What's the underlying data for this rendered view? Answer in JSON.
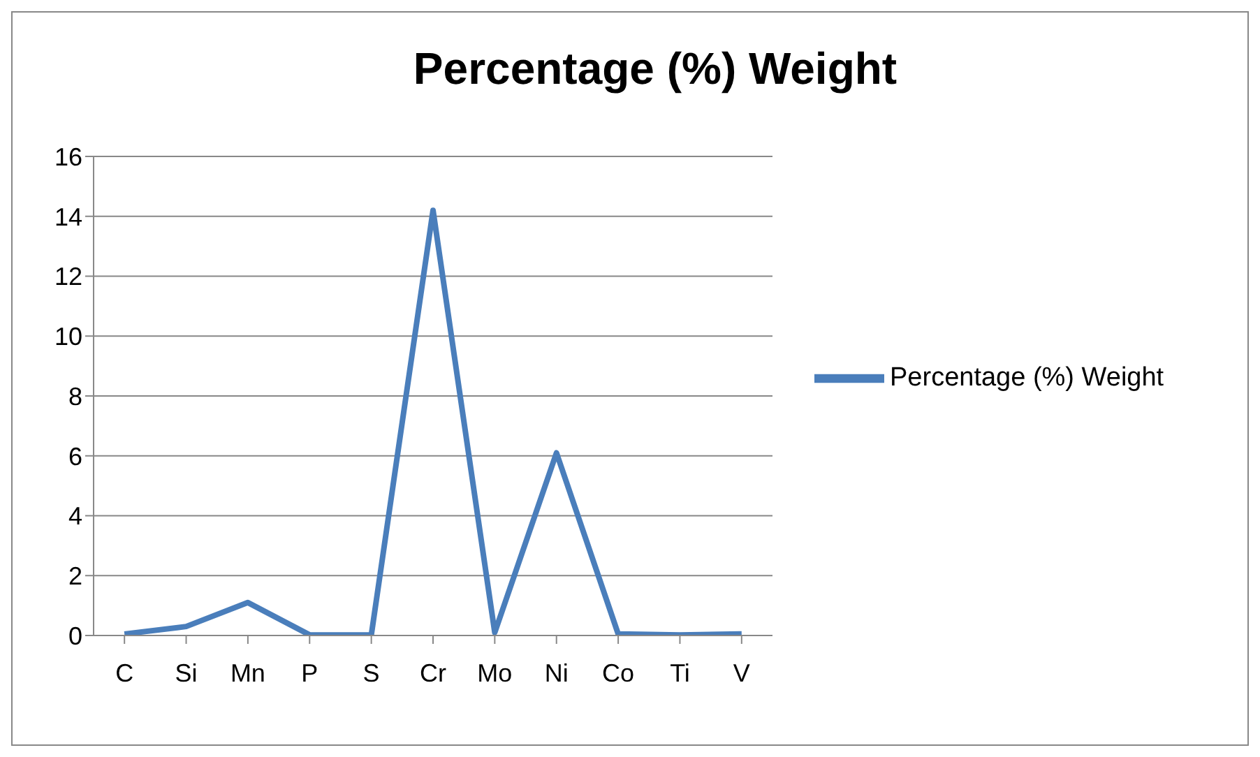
{
  "chart_data": {
    "type": "line",
    "title": "Percentage (%) Weight",
    "categories": [
      "C",
      "Si",
      "Mn",
      "P",
      "S",
      "Cr",
      "Mo",
      "Ni",
      "Co",
      "Ti",
      "V"
    ],
    "series": [
      {
        "name": "Percentage (%) Weight",
        "color": "#4a7ebb",
        "values": [
          0.05,
          0.3,
          1.1,
          0.02,
          0.02,
          14.2,
          0.1,
          6.1,
          0.05,
          0.02,
          0.05
        ]
      }
    ],
    "ylim": [
      0,
      16
    ],
    "yticks": [
      0,
      2,
      4,
      6,
      8,
      10,
      12,
      14,
      16
    ],
    "grid": "y",
    "legend": "right",
    "marker": "none",
    "line_style": "solid"
  }
}
